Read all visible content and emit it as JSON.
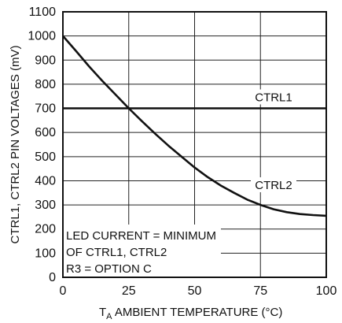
{
  "chart_data": {
    "type": "line",
    "xlabel_prefix": "T",
    "xlabel_sub": "A",
    "xlabel_rest": " AMBIENT TEMPERATURE (°C)",
    "ylabel": "CTRL1, CTRL2 PIN VOLTAGES (mV)",
    "xlim": [
      0,
      100
    ],
    "ylim": [
      0,
      1100
    ],
    "xticks": [
      0,
      25,
      50,
      75,
      100
    ],
    "yticks": [
      0,
      100,
      200,
      300,
      400,
      500,
      600,
      700,
      800,
      900,
      1000,
      1100
    ],
    "grid": true,
    "series": [
      {
        "name": "CTRL1",
        "x": [
          0,
          100
        ],
        "y": [
          700,
          700
        ]
      },
      {
        "name": "CTRL2",
        "x": [
          0,
          5,
          10,
          15,
          20,
          25,
          30,
          35,
          40,
          45,
          50,
          55,
          60,
          65,
          70,
          75,
          80,
          85,
          90,
          95,
          100
        ],
        "y": [
          1000,
          937,
          873,
          813,
          757,
          700,
          647,
          595,
          546,
          500,
          455,
          415,
          380,
          350,
          322,
          300,
          282,
          270,
          262,
          258,
          255
        ]
      }
    ],
    "annotation": [
      "LED CURRENT = MINIMUM",
      "OF CTRL1, CTRL2",
      "R3 = OPTION C"
    ]
  }
}
